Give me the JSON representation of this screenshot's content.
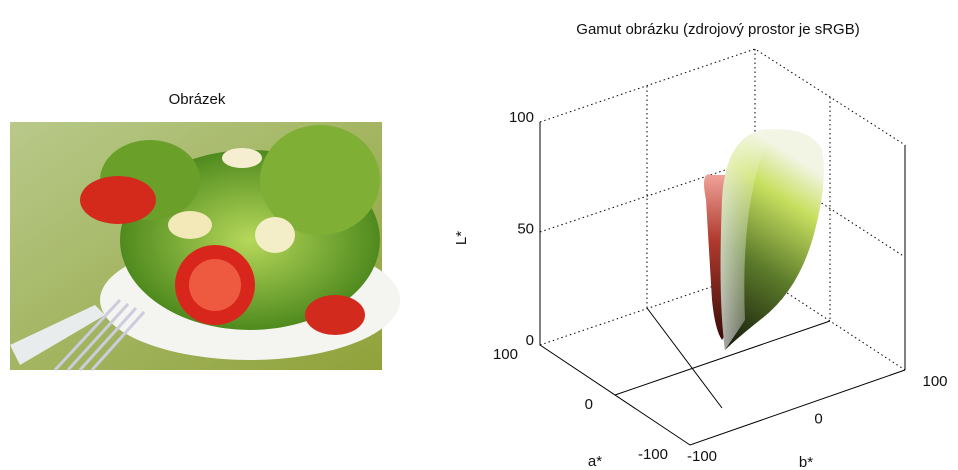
{
  "image_panel": {
    "title": "Obrázek"
  },
  "gamut_plot": {
    "title": "Gamut obrázku (zdrojový prostor je sRGB)",
    "zlabel": "L*",
    "xlabel": "a*",
    "ylabel": "b*",
    "zticks": [
      0,
      50,
      100
    ],
    "aticks": [
      -100,
      0,
      100
    ],
    "bticks": [
      -100,
      0,
      100
    ]
  }
}
